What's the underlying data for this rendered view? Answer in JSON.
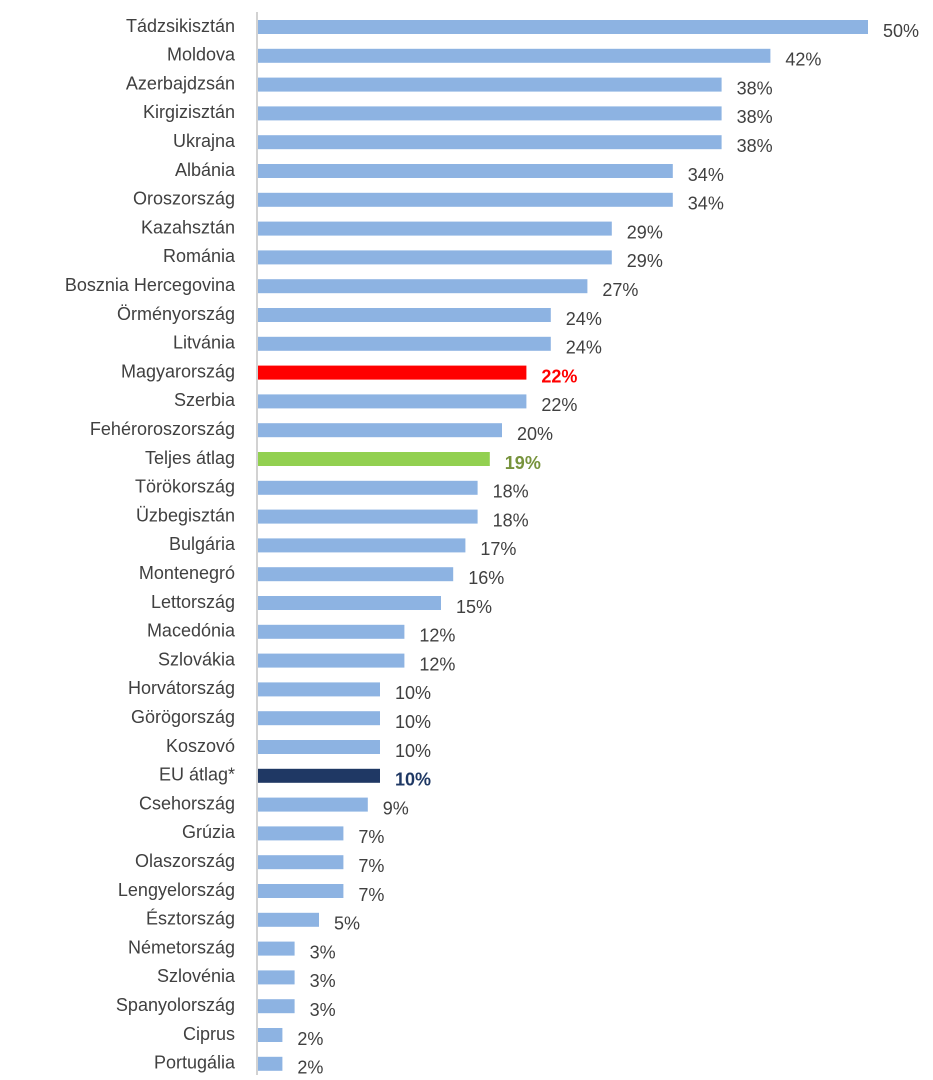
{
  "chart_data": {
    "type": "barh",
    "categories": [
      "Tádzsikisztán",
      "Moldova",
      "Azerbajdzsán",
      "Kirgizisztán",
      "Ukrajna",
      "Albánia",
      "Oroszország",
      "Kazahsztán",
      "Románia",
      "Bosznia Hercegovina",
      "Örményország",
      "Litvánia",
      "Magyarország",
      "Szerbia",
      "Fehéroroszország",
      "Teljes átlag",
      "Törökország",
      "Üzbegisztán",
      "Bulgária",
      "Montenegró",
      "Lettország",
      "Macedónia",
      "Szlovákia",
      "Horvátország",
      "Görögország",
      "Koszovó",
      "EU átlag*",
      "Csehország",
      "Grúzia",
      "Olaszország",
      "Lengyelország",
      "Észtország",
      "Németország",
      "Szlovénia",
      "Spanyolország",
      "Ciprus",
      "Portugália"
    ],
    "values": [
      50,
      42,
      38,
      38,
      38,
      34,
      34,
      29,
      29,
      27,
      24,
      24,
      22,
      22,
      20,
      19,
      18,
      18,
      17,
      16,
      15,
      12,
      12,
      10,
      10,
      10,
      10,
      9,
      7,
      7,
      7,
      5,
      3,
      3,
      3,
      2,
      2
    ],
    "value_labels": [
      "50%",
      "42%",
      "38%",
      "38%",
      "38%",
      "34%",
      "34%",
      "29%",
      "29%",
      "27%",
      "24%",
      "24%",
      "22%",
      "22%",
      "20%",
      "19%",
      "18%",
      "18%",
      "17%",
      "16%",
      "15%",
      "12%",
      "12%",
      "10%",
      "10%",
      "10%",
      "10%",
      "9%",
      "7%",
      "7%",
      "7%",
      "5%",
      "3%",
      "3%",
      "3%",
      "2%",
      "2%"
    ],
    "color": "#8db3e2",
    "highlights": [
      {
        "index": 12,
        "color": "#ff0000",
        "label_color": "#ff0000"
      },
      {
        "index": 15,
        "color": "#92d050",
        "label_color": "#77933c"
      },
      {
        "index": 26,
        "color": "#1f3864",
        "label_color": "#1f3864"
      }
    ],
    "xlim": [
      0,
      50
    ]
  }
}
